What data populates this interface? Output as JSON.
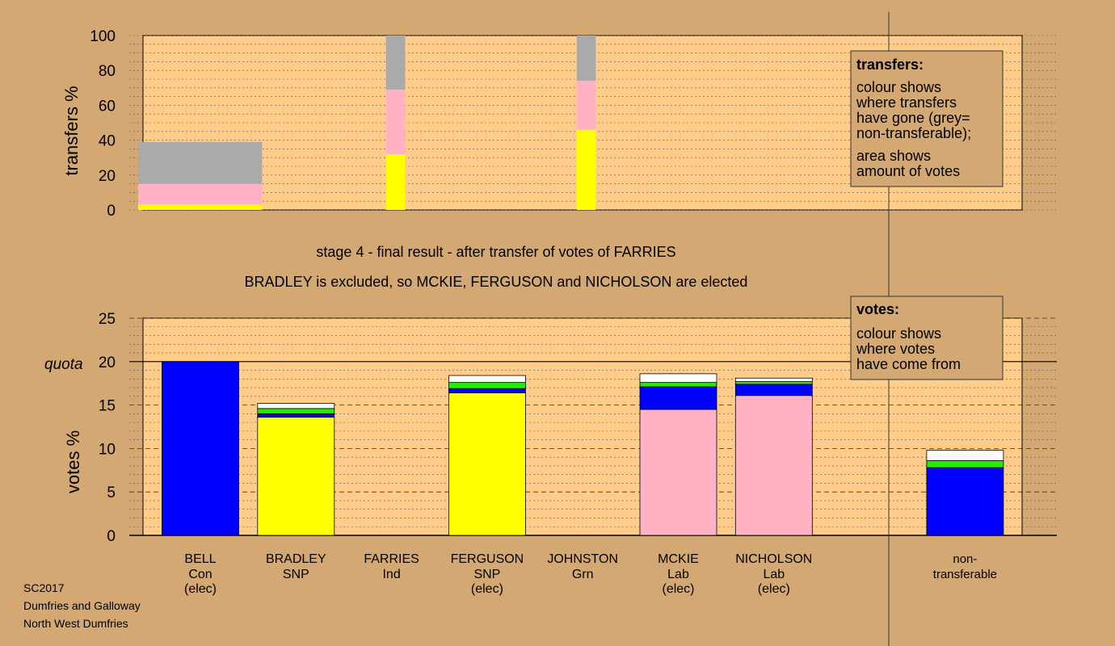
{
  "colors": {
    "background": "#d4a873",
    "plot_bg": "#ffcc8a",
    "con": "#0000ff",
    "snp": "#ffff00",
    "lab": "#ffb2c4",
    "grn": "#22ee00",
    "ind": "#ffffff",
    "nontransferable": "#aaaaaa"
  },
  "titles": {
    "line1": "stage 4 - final result - after transfer of votes of FARRIES",
    "line2": "BRADLEY is excluded, so MCKIE, FERGUSON and NICHOLSON are elected"
  },
  "footer": [
    "SC2017",
    "Dumfries and Galloway",
    "North West Dumfries"
  ],
  "chart_data": [
    {
      "type": "bar",
      "name": "transfers",
      "ylabel": "transfers %",
      "ylim": [
        0,
        100
      ],
      "yticks": [
        0,
        20,
        40,
        60,
        80,
        100
      ],
      "bars": [
        {
          "start": 0,
          "end": 1.3,
          "segments": [
            {
              "party": "snp",
              "value": 3
            },
            {
              "party": "lab",
              "value": 12
            },
            {
              "party": "nontransferable",
              "value": 24
            }
          ]
        },
        {
          "start": 2.6,
          "end": 2.8,
          "segments": [
            {
              "party": "snp",
              "value": 32
            },
            {
              "party": "lab",
              "value": 37
            },
            {
              "party": "nontransferable",
              "value": 31
            }
          ]
        },
        {
          "start": 4.6,
          "end": 4.8,
          "segments": [
            {
              "party": "snp",
              "value": 46
            },
            {
              "party": "lab",
              "value": 28
            },
            {
              "party": "nontransferable",
              "value": 26
            }
          ]
        }
      ],
      "legend": {
        "title": "transfers:",
        "lines": [
          "colour shows",
          "where transfers",
          "have gone (grey=",
          "non-transferable);"
        ],
        "lines2": [
          "area shows",
          "amount of votes"
        ]
      }
    },
    {
      "type": "bar",
      "name": "votes",
      "ylabel": "votes %",
      "ylim": [
        0,
        25
      ],
      "yticks": [
        0,
        5,
        10,
        15,
        20,
        25
      ],
      "quota": 20,
      "quota_label": "quota",
      "candidates": [
        {
          "name": "BELL",
          "party_label": "Con",
          "status": "(elec)",
          "segments": [
            {
              "party": "con",
              "value": 20
            }
          ]
        },
        {
          "name": "BRADLEY",
          "party_label": "SNP",
          "status": "",
          "segments": [
            {
              "party": "snp",
              "value": 13.6
            },
            {
              "party": "con",
              "value": 0.4
            },
            {
              "party": "grn",
              "value": 0.6
            },
            {
              "party": "ind",
              "value": 0.6
            }
          ]
        },
        {
          "name": "FARRIES",
          "party_label": "Ind",
          "status": "",
          "segments": []
        },
        {
          "name": "FERGUSON",
          "party_label": "SNP",
          "status": "(elec)",
          "segments": [
            {
              "party": "snp",
              "value": 16.4
            },
            {
              "party": "con",
              "value": 0.5
            },
            {
              "party": "grn",
              "value": 0.7
            },
            {
              "party": "ind",
              "value": 0.8
            }
          ]
        },
        {
          "name": "JOHNSTON",
          "party_label": "Grn",
          "status": "",
          "segments": []
        },
        {
          "name": "MCKIE",
          "party_label": "Lab",
          "status": "(elec)",
          "segments": [
            {
              "party": "lab",
              "value": 14.5
            },
            {
              "party": "con",
              "value": 2.6
            },
            {
              "party": "grn",
              "value": 0.5
            },
            {
              "party": "ind",
              "value": 1.0
            }
          ]
        },
        {
          "name": "NICHOLSON",
          "party_label": "Lab",
          "status": "(elec)",
          "segments": [
            {
              "party": "lab",
              "value": 16.1
            },
            {
              "party": "con",
              "value": 1.3
            },
            {
              "party": "grn",
              "value": 0.3
            },
            {
              "party": "ind",
              "value": 0.4
            }
          ]
        },
        {
          "name": "",
          "party_label": "",
          "status": "",
          "segments": []
        },
        {
          "name": "non-",
          "party_label": "transferable",
          "status": "",
          "segments": [
            {
              "party": "con",
              "value": 7.8
            },
            {
              "party": "grn",
              "value": 0.8
            },
            {
              "party": "ind",
              "value": 1.2
            }
          ]
        }
      ],
      "legend": {
        "title": "votes:",
        "lines": [
          "colour shows",
          "where votes",
          "have come from"
        ]
      }
    }
  ]
}
